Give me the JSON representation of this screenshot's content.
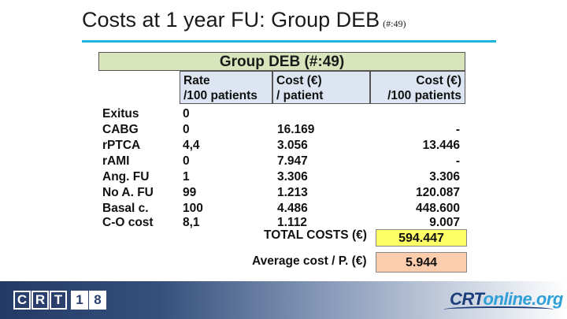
{
  "slide": {
    "title": "Costs at 1 year FU: Group DEB",
    "subtitle": "(#:49)"
  },
  "table": {
    "group_header": "Group DEB (#:49)",
    "headers": {
      "rate": [
        "Rate",
        "/100 patients"
      ],
      "cost_patient": [
        "Cost (€)",
        "/ patient"
      ],
      "cost_100": [
        "Cost (€)",
        "/100 patients"
      ]
    },
    "rows": [
      {
        "label": "Exitus",
        "rate": "0",
        "cost_patient": "",
        "cost_100": ""
      },
      {
        "label": "CABG",
        "rate": "0",
        "cost_patient": "16.169",
        "cost_100": "-"
      },
      {
        "label": "rPTCA",
        "rate": "4,4",
        "cost_patient": "3.056",
        "cost_100": "13.446"
      },
      {
        "label": "rAMI",
        "rate": "0",
        "cost_patient": "7.947",
        "cost_100": "-"
      },
      {
        "label": "Ang. FU",
        "rate": "1",
        "cost_patient": "3.306",
        "cost_100": "3.306"
      },
      {
        "label": "No A. FU",
        "rate": "99",
        "cost_patient": "1.213",
        "cost_100": "120.087"
      },
      {
        "label": "Basal c.",
        "rate": "100",
        "cost_patient": "4.486",
        "cost_100": "448.600"
      },
      {
        "label": "C-O cost",
        "rate": "8,1",
        "cost_patient": "1.112",
        "cost_100": "9.007"
      }
    ],
    "total_label": "TOTAL COSTS (€)",
    "total_value": "594.447",
    "average_label": "Average cost / P. (€)",
    "average_value": "5.944"
  },
  "footer": {
    "crt_letters": [
      "C",
      "R",
      "T",
      "1",
      "8"
    ],
    "crt_online": [
      "CRT",
      "online.org"
    ]
  },
  "colors": {
    "title_rule": "#1fb3dc",
    "group_header_bg": "#d8e5bc",
    "column_header_bg": "#dce5f1",
    "total_bg": "#ffff66",
    "average_bg": "#fbcdad",
    "footer_dark": "#243a66"
  }
}
